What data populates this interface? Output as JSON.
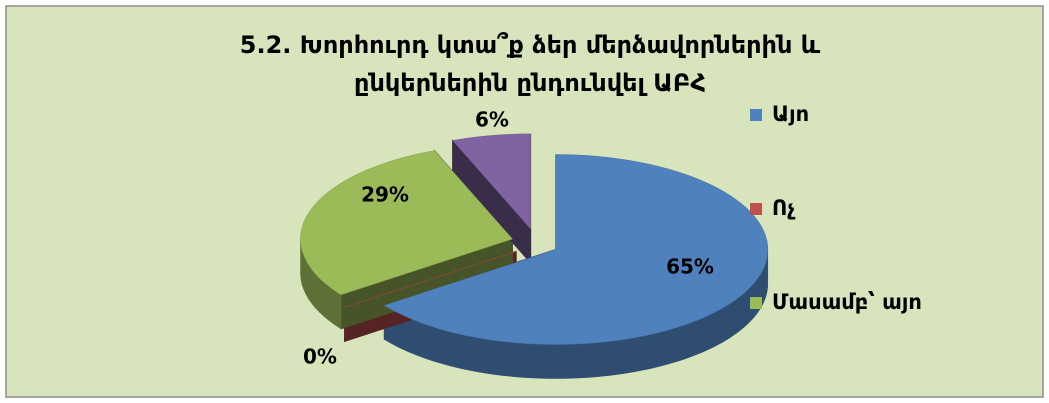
{
  "chart_data": {
    "type": "pie3d",
    "title": "5.2. Խորհուրդ կտա՞ք ձեր մերձավորներին  և ընկերներին ընդունվել ԱԲՀ",
    "categories": [
      "Այո",
      "Ոչ",
      "Մասամբ՝ այո",
      null
    ],
    "values": [
      65,
      0,
      29,
      6
    ],
    "value_labels": [
      "65%",
      "0%",
      "29%",
      "6%"
    ],
    "colors": [
      "#4f81bd",
      "#c0504d",
      "#9bbb59",
      "#8064a2"
    ],
    "legend": "right"
  }
}
